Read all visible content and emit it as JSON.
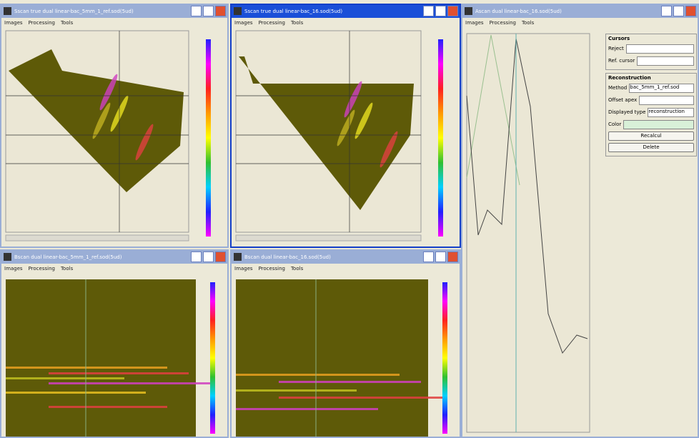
{
  "windows": [
    {
      "title": "Sscan true dual linear-bac_5mm_1_ref.sod(5ud)",
      "menu": [
        "Images",
        "Processing",
        "Tools"
      ]
    },
    {
      "title": "Sscan true dual linear-bac_16.sod(5ud)",
      "menu": [
        "Images",
        "Processing",
        "Tools"
      ]
    },
    {
      "title": "Bscan dual linear-bac_5mm_1_ref.sod(5ud)",
      "menu": [
        "Images",
        "Processing",
        "Tools"
      ]
    },
    {
      "title": "Bscan dual linear-bac_16.sod(5ud)",
      "menu": [
        "Images",
        "Processing",
        "Tools"
      ]
    },
    {
      "title": "Ascan dual linear-bac_16.sod(5ud)",
      "menu": [
        "Images",
        "Processing",
        "Tools"
      ]
    }
  ],
  "panel": {
    "cursors": {
      "title": "Cursors",
      "reject": "Reject",
      "ref_cursor": "Ref. cursor"
    },
    "reconstruction": {
      "title": "Reconstruction",
      "method": "Method",
      "method_value": "bac_5mm_1_ref.sod",
      "offset_apex": "Offset apex",
      "displayed_type": "Displayed type",
      "displayed_value": "reconstruction",
      "color": "Color",
      "recalcul": "Recalcul",
      "delete": "Delete"
    }
  }
}
